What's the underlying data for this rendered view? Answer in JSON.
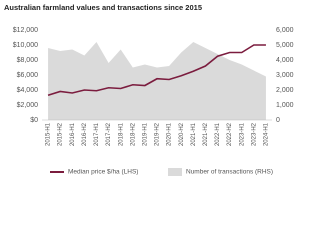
{
  "chart_data": {
    "type": "line-area",
    "title": "Australian farmland values and transactions since 2015",
    "categories": [
      "2015-H1",
      "2015-H2",
      "2016-H1",
      "2016-H2",
      "2017-H1",
      "2017-H2",
      "2018-H1",
      "2018-H2",
      "2019-H1",
      "2019-H2",
      "2020-H1",
      "2020-H2",
      "2021-H1",
      "2021-H2",
      "2022-H1",
      "2022-H2",
      "2023-H1",
      "2023-H2",
      "2024-H1"
    ],
    "series": [
      {
        "name": "Median price $/ha (LHS)",
        "color": "#7b1c3e",
        "mark": "line",
        "values": [
          3300,
          3800,
          3600,
          4000,
          3900,
          4300,
          4200,
          4700,
          4600,
          5500,
          5400,
          5900,
          6500,
          7200,
          8500,
          9000,
          9000,
          10000,
          10000
        ]
      },
      {
        "name": "Number of transactions (RHS)",
        "color": "#dadada",
        "mark": "area",
        "axis": "y2",
        "values": [
          4800,
          4600,
          4700,
          4300,
          5200,
          3800,
          4700,
          3500,
          3700,
          3500,
          3600,
          4500,
          5200,
          4800,
          4400,
          4000,
          3700,
          3300,
          2900
        ]
      }
    ],
    "ylim": [
      0,
      12000
    ],
    "yticks": [
      {
        "value": 0,
        "label": "$0"
      },
      {
        "value": 2000,
        "label": "$2,000"
      },
      {
        "value": 4000,
        "label": "$4,000"
      },
      {
        "value": 6000,
        "label": "$6,000"
      },
      {
        "value": 8000,
        "label": "$8,000"
      },
      {
        "value": 10000,
        "label": "$10,000"
      },
      {
        "value": 12000,
        "label": "$12,000"
      }
    ],
    "y2lim": [
      0,
      6000
    ],
    "y2ticks": [
      0,
      {
        "value": 1000,
        "label": "1,000"
      },
      {
        "value": 2000,
        "label": "2,000"
      },
      {
        "value": 3000,
        "label": "3,000"
      },
      {
        "value": 4000,
        "label": "4,000"
      },
      {
        "value": 5000,
        "label": "5,000"
      },
      {
        "value": 6000,
        "label": "6,000"
      }
    ]
  }
}
